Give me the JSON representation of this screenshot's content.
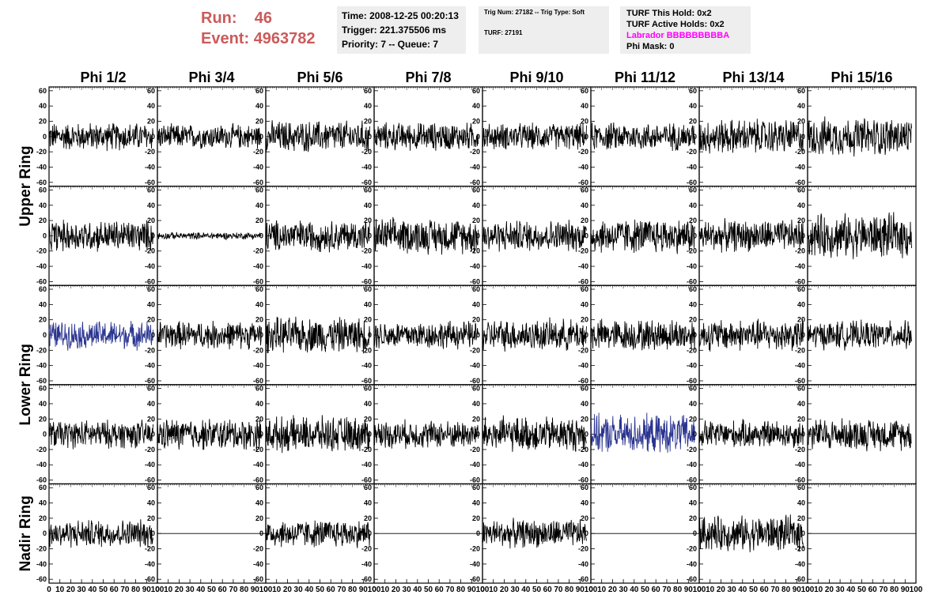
{
  "header": {
    "run_label": "Run:",
    "run_value": "46",
    "event_label": "Event:",
    "event_value": "4963782",
    "time": "Time: 2008-12-25 00:20:13",
    "trigger": "Trigger: 221.375506 ms",
    "priority": "Priority: 7 -- Queue: 7",
    "trig_num": "Trig Num: 27182 -- Trig Type: Soft",
    "turf": "TURF: 27191",
    "turf_hold": "TURF This Hold: 0x2",
    "turf_active": "TURF Active Holds: 0x2",
    "labrador": "Labrador BBBBBBBBBA",
    "phi_mask": "Phi Mask: 0",
    "run_color": "#cc5a5a",
    "labrador_color": "#ff00ff"
  },
  "columns": [
    "Phi 1/2",
    "Phi 3/4",
    "Phi 5/6",
    "Phi 7/8",
    "Phi 9/10",
    "Phi 11/12",
    "Phi 13/14",
    "Phi 15/16"
  ],
  "row_groups": [
    {
      "label": "Upper Ring",
      "rows": [
        0,
        1
      ]
    },
    {
      "label": "Lower Ring",
      "rows": [
        2,
        3
      ]
    },
    {
      "label": "Nadir Ring",
      "rows": [
        4
      ]
    }
  ],
  "chart_data": {
    "type": "line",
    "description_grid": "5 rows x 8 columns of waveform panels",
    "xlim": [
      0,
      100
    ],
    "ylim": [
      -65,
      65
    ],
    "y_ticks": [
      -60,
      -40,
      -20,
      0,
      20,
      40,
      60
    ],
    "x_ticks": [
      0,
      10,
      20,
      30,
      40,
      50,
      60,
      70,
      80,
      90,
      100
    ],
    "grid": false,
    "trace_colors": {
      "normal": "#000000",
      "highlight": "#2b3590"
    },
    "panels": [
      [
        {
          "amp": 16
        },
        {
          "amp": 14
        },
        {
          "amp": 18
        },
        {
          "amp": 16
        },
        {
          "amp": 15
        },
        {
          "amp": 16
        },
        {
          "amp": 20
        },
        {
          "amp": 22
        }
      ],
      [
        {
          "amp": 18
        },
        {
          "amp": 4
        },
        {
          "amp": 18
        },
        {
          "amp": 20
        },
        {
          "amp": 18
        },
        {
          "amp": 20
        },
        {
          "amp": 18
        },
        {
          "amp": 25
        }
      ],
      [
        {
          "amp": 16,
          "highlight": true
        },
        {
          "amp": 16
        },
        {
          "amp": 20
        },
        {
          "amp": 16
        },
        {
          "amp": 18
        },
        {
          "amp": 18
        },
        {
          "amp": 18
        },
        {
          "amp": 16
        }
      ],
      [
        {
          "amp": 16
        },
        {
          "amp": 18
        },
        {
          "amp": 20
        },
        {
          "amp": 16
        },
        {
          "amp": 20
        },
        {
          "amp": 22,
          "highlight": true
        },
        {
          "amp": 16
        },
        {
          "amp": 18
        }
      ],
      [
        {
          "amp": 16
        },
        {
          "amp": 0,
          "flat": true
        },
        {
          "amp": 16
        },
        {
          "amp": 0,
          "flat": true
        },
        {
          "amp": 16
        },
        {
          "amp": 0,
          "flat": true
        },
        {
          "amp": 20
        },
        {
          "amp": 0,
          "flat": true
        }
      ]
    ]
  }
}
